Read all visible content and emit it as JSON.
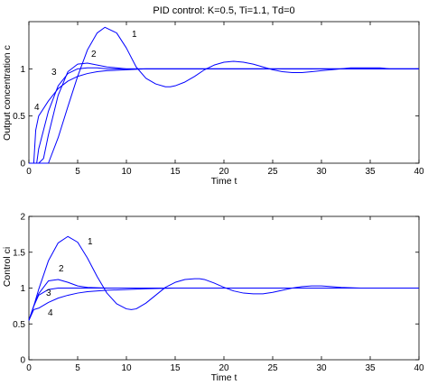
{
  "chart_data": [
    {
      "type": "line",
      "title": "PID control: K=0.5, Ti=1.1, Td=0",
      "xlabel": "Time t",
      "ylabel": "Output concentration c",
      "xlim": [
        0,
        40
      ],
      "ylim": [
        0,
        1.5
      ],
      "xticks": [
        "0",
        "5",
        "10",
        "15",
        "20",
        "25",
        "30",
        "35",
        "40"
      ],
      "yticks": [
        "0",
        "0.5",
        "1"
      ],
      "color": "#0000ff",
      "grid": false,
      "series": [
        {
          "name": "1",
          "x": [
            0,
            1,
            2,
            3,
            4,
            5,
            6,
            7,
            7.8,
            9,
            10,
            11,
            12,
            13,
            14,
            14.5,
            15,
            16,
            17,
            18,
            19,
            20,
            21,
            22,
            23,
            24,
            25,
            26,
            27,
            28,
            29,
            30,
            31,
            32,
            33,
            34,
            35,
            36,
            37,
            38,
            39,
            40
          ],
          "y": [
            0,
            0,
            0,
            0.27,
            0.6,
            0.92,
            1.2,
            1.38,
            1.44,
            1.38,
            1.22,
            1.02,
            0.9,
            0.84,
            0.81,
            0.81,
            0.82,
            0.86,
            0.92,
            0.99,
            1.04,
            1.07,
            1.08,
            1.07,
            1.05,
            1.02,
            0.99,
            0.97,
            0.96,
            0.96,
            0.97,
            0.98,
            0.99,
            1.0,
            1.01,
            1.01,
            1.01,
            1.01,
            1.0,
            1.0,
            1.0,
            1.0
          ]
        },
        {
          "name": "2",
          "x": [
            0,
            1,
            1.5,
            2,
            3,
            4,
            5,
            6,
            7,
            8,
            9,
            10,
            12,
            15,
            20,
            40
          ],
          "y": [
            0,
            0,
            0.05,
            0.3,
            0.72,
            0.97,
            1.05,
            1.06,
            1.04,
            1.02,
            1.01,
            1.0,
            1.0,
            1.0,
            1.0,
            1.0
          ]
        },
        {
          "name": "3",
          "x": [
            0,
            0.8,
            1,
            2,
            3,
            4,
            5,
            6,
            7,
            8,
            10,
            12,
            15,
            20,
            40
          ],
          "y": [
            0,
            0,
            0.15,
            0.55,
            0.82,
            0.95,
            1.0,
            1.01,
            1.01,
            1.0,
            1.0,
            1.0,
            1.0,
            1.0,
            1.0
          ]
        },
        {
          "name": "4",
          "x": [
            0,
            0.5,
            0.7,
            1,
            2,
            3,
            4,
            5,
            6,
            7,
            8,
            10,
            12,
            15,
            20,
            40
          ],
          "y": [
            0,
            0,
            0.35,
            0.5,
            0.66,
            0.79,
            0.87,
            0.92,
            0.95,
            0.97,
            0.98,
            0.99,
            1.0,
            1.0,
            1.0,
            1.0
          ]
        }
      ],
      "annotations": [
        "1",
        "2",
        "3",
        "4"
      ]
    },
    {
      "type": "line",
      "title": "",
      "xlabel": "Time t",
      "ylabel": "Control ci",
      "xlim": [
        0,
        40
      ],
      "ylim": [
        0,
        2
      ],
      "xticks": [
        "0",
        "5",
        "10",
        "15",
        "20",
        "25",
        "30",
        "35",
        "40"
      ],
      "yticks": [
        "0",
        "0.5",
        "1",
        "1.5",
        "2"
      ],
      "color": "#0000ff",
      "grid": false,
      "series": [
        {
          "name": "1",
          "x": [
            0,
            0.5,
            1,
            2,
            3,
            4,
            5,
            6,
            7,
            8,
            9,
            10,
            10.5,
            11,
            12,
            13,
            14,
            15,
            16,
            17,
            17.5,
            18,
            19,
            20,
            21,
            22,
            23,
            24,
            25,
            26,
            27,
            28,
            29,
            30,
            31,
            32,
            34,
            36,
            38,
            40
          ],
          "y": [
            0.55,
            0.75,
            0.98,
            1.38,
            1.63,
            1.72,
            1.64,
            1.42,
            1.16,
            0.93,
            0.78,
            0.71,
            0.7,
            0.71,
            0.79,
            0.9,
            1.01,
            1.08,
            1.12,
            1.13,
            1.13,
            1.12,
            1.07,
            1.01,
            0.96,
            0.93,
            0.92,
            0.92,
            0.94,
            0.97,
            1.0,
            1.02,
            1.03,
            1.03,
            1.02,
            1.01,
            1.0,
            1.0,
            1.0,
            1.0
          ]
        },
        {
          "name": "2",
          "x": [
            0,
            0.5,
            1,
            2,
            3,
            4,
            5,
            6,
            8,
            10,
            15,
            40
          ],
          "y": [
            0.55,
            0.75,
            0.92,
            1.1,
            1.12,
            1.08,
            1.03,
            1.01,
            1.0,
            1.0,
            1.0,
            1.0
          ]
        },
        {
          "name": "3",
          "x": [
            0,
            0.5,
            1,
            2,
            3,
            4,
            5,
            6,
            8,
            10,
            15,
            40
          ],
          "y": [
            0.55,
            0.75,
            0.9,
            0.98,
            1.0,
            1.0,
            1.0,
            1.0,
            1.0,
            1.0,
            1.0,
            1.0
          ]
        },
        {
          "name": "4",
          "x": [
            0,
            0.5,
            1,
            2,
            3,
            4,
            5,
            6,
            8,
            10,
            12,
            15,
            20,
            40
          ],
          "y": [
            0.55,
            0.7,
            0.72,
            0.8,
            0.86,
            0.9,
            0.93,
            0.95,
            0.97,
            0.98,
            0.99,
            1.0,
            1.0,
            1.0
          ]
        }
      ],
      "annotations": [
        "1",
        "2",
        "3",
        "4"
      ]
    }
  ]
}
